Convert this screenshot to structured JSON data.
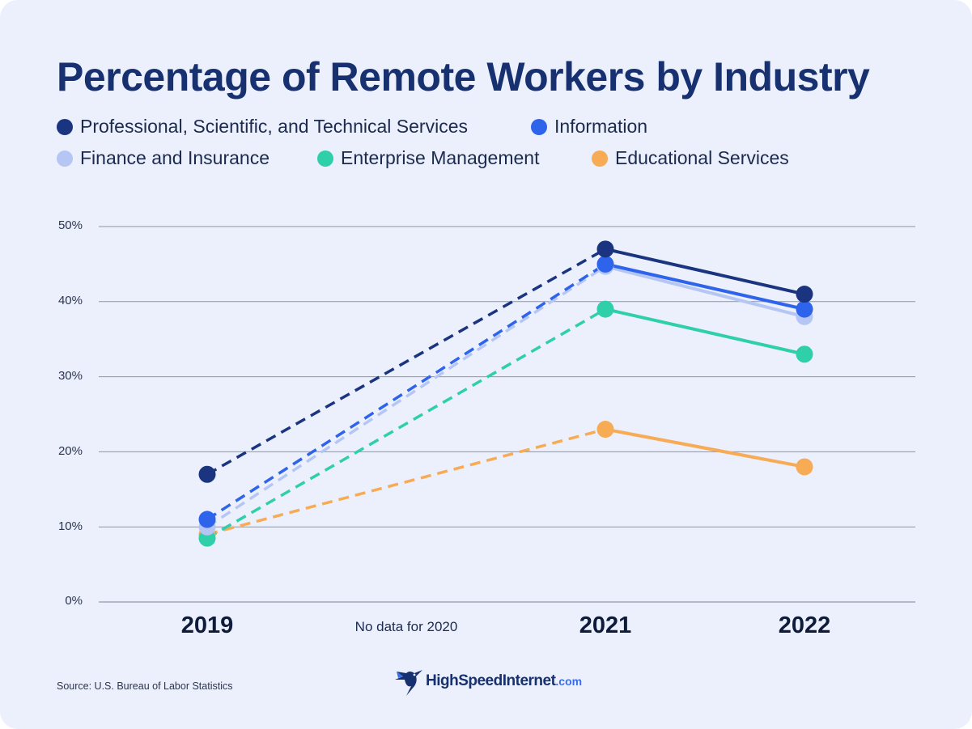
{
  "chart_data": {
    "type": "line",
    "title": "Percentage of Remote Workers by Industry",
    "categories": [
      "2019",
      "2021",
      "2022"
    ],
    "x": [
      2019,
      2021,
      2022
    ],
    "note": "No data for 2020",
    "ylim": [
      0,
      50
    ],
    "yticks": [
      "0%",
      "10%",
      "20%",
      "30%",
      "40%",
      "50%"
    ],
    "ytick_values": [
      0,
      10,
      20,
      30,
      40,
      50
    ],
    "grid": true,
    "series": [
      {
        "name": "Professional, Scientific, and Technical Services",
        "color": "#1a3480",
        "values": [
          17,
          47,
          41
        ]
      },
      {
        "name": "Information",
        "color": "#2e63eb",
        "values": [
          11,
          45,
          39
        ]
      },
      {
        "name": "Finance and Insurance",
        "color": "#b5c6f5",
        "values": [
          10,
          44.7,
          38
        ]
      },
      {
        "name": "Enterprise Management",
        "color": "#2fcfaa",
        "values": [
          8.5,
          39,
          33
        ]
      },
      {
        "name": "Educational Services",
        "color": "#f7ab55",
        "values": [
          9,
          23,
          18
        ]
      }
    ],
    "source": "Source: U.S. Bureau of Labor Statistics"
  },
  "brand": {
    "name": "HighSpeedInternet",
    "suffix": ".com",
    "icon": "hummingbird-icon"
  }
}
